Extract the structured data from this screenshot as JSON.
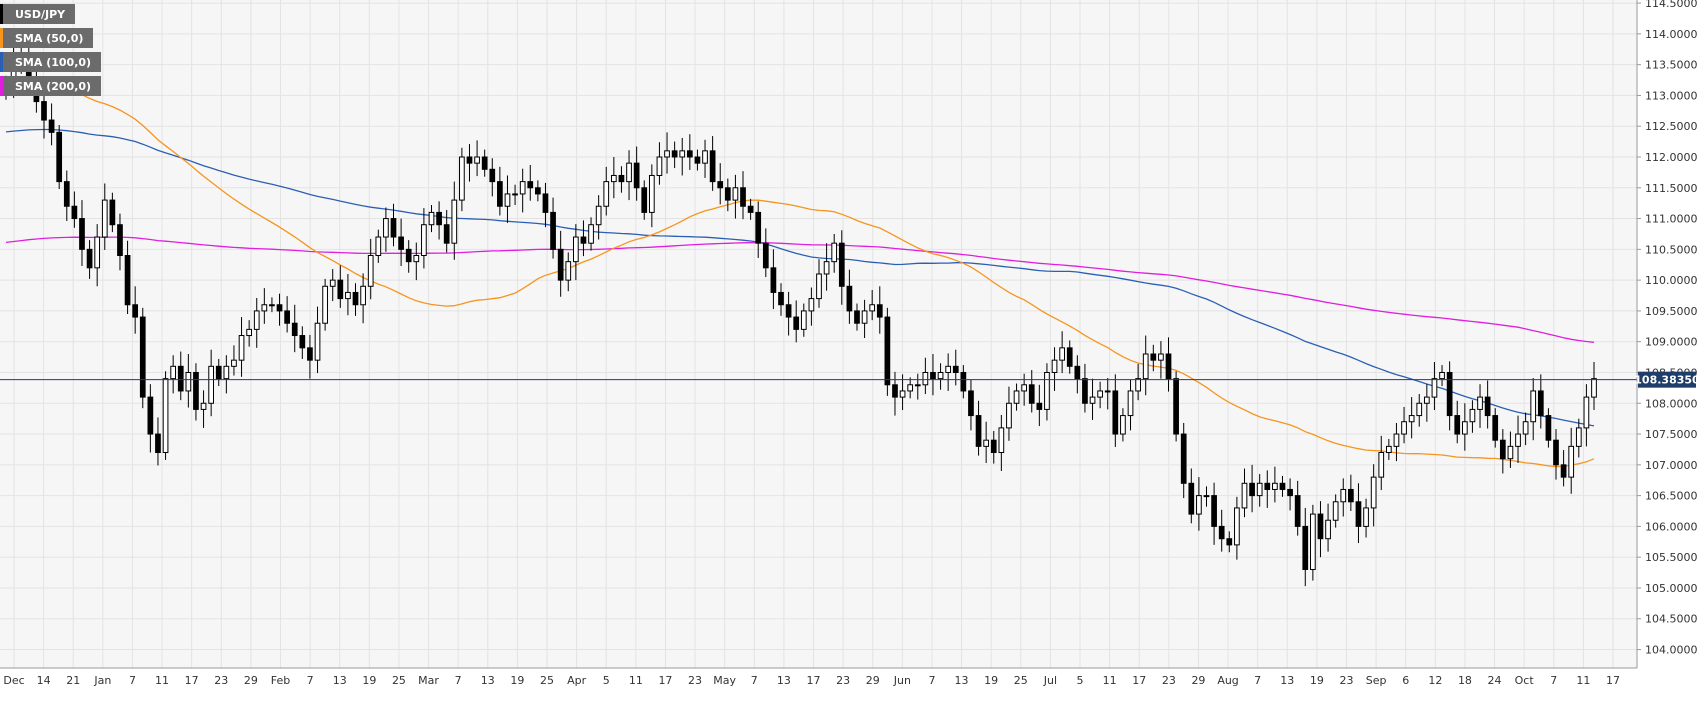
{
  "chart_data": {
    "type": "candlestick",
    "symbol": "USD/JPY",
    "last_price": "108.38350",
    "legend": [
      {
        "label": "USD/JPY",
        "color": "#000000"
      },
      {
        "label": "SMA (50,0)",
        "color": "#f7941d"
      },
      {
        "label": "SMA (100,0)",
        "color": "#2b5fb4"
      },
      {
        "label": "SMA (200,0)",
        "color": "#e01ee0"
      }
    ],
    "ylim": [
      103.7,
      114.55
    ],
    "y_ticks": [
      "114.5000",
      "114.0000",
      "113.5000",
      "113.0000",
      "112.5000",
      "112.0000",
      "111.5000",
      "111.0000",
      "110.5000",
      "110.0000",
      "109.5000",
      "109.0000",
      "108.5000",
      "108.0000",
      "107.5000",
      "107.0000",
      "106.5000",
      "106.0000",
      "105.5000",
      "105.0000",
      "104.5000",
      "104.0000"
    ],
    "x_ticks": [
      "Dec",
      "14",
      "21",
      "Jan",
      "7",
      "11",
      "17",
      "23",
      "29",
      "Feb",
      "7",
      "13",
      "19",
      "25",
      "Mar",
      "7",
      "13",
      "19",
      "25",
      "Apr",
      "5",
      "11",
      "17",
      "23",
      "May",
      "7",
      "13",
      "17",
      "23",
      "29",
      "Jun",
      "7",
      "13",
      "19",
      "25",
      "Jul",
      "5",
      "11",
      "17",
      "23",
      "29",
      "Aug",
      "7",
      "13",
      "19",
      "23",
      "Sep",
      "6",
      "12",
      "18",
      "24",
      "Oct",
      "7",
      "11",
      "17"
    ],
    "grid": true,
    "colors": {
      "up": "#ffffff",
      "down": "#000000",
      "sma50": "#f7941d",
      "sma100": "#2b5fb4",
      "sma200": "#e01ee0",
      "price_line": "#1f3d6b"
    },
    "closes": [
      113.2,
      113.6,
      113.5,
      113.3,
      112.9,
      112.6,
      112.4,
      111.6,
      111.2,
      111.0,
      110.5,
      110.2,
      110.7,
      111.3,
      110.9,
      110.4,
      109.6,
      109.4,
      108.1,
      107.5,
      107.2,
      108.4,
      108.6,
      108.2,
      108.5,
      107.9,
      108.0,
      108.6,
      108.4,
      108.6,
      108.7,
      109.1,
      109.2,
      109.5,
      109.6,
      109.6,
      109.5,
      109.3,
      109.1,
      108.9,
      108.7,
      109.3,
      109.9,
      110.0,
      109.7,
      109.8,
      109.6,
      109.9,
      110.4,
      110.7,
      111.0,
      110.7,
      110.5,
      110.3,
      110.4,
      110.9,
      111.1,
      110.9,
      110.6,
      111.3,
      112.0,
      111.9,
      112.0,
      111.8,
      111.6,
      111.2,
      111.4,
      111.4,
      111.6,
      111.5,
      111.4,
      111.1,
      110.5,
      110.0,
      110.3,
      110.7,
      110.6,
      110.9,
      111.2,
      111.6,
      111.7,
      111.6,
      111.9,
      111.5,
      111.1,
      111.7,
      112.0,
      112.1,
      112.0,
      112.1,
      112.0,
      111.9,
      112.1,
      111.6,
      111.5,
      111.3,
      111.5,
      111.2,
      111.1,
      110.6,
      110.2,
      109.8,
      109.6,
      109.4,
      109.2,
      109.5,
      109.7,
      110.1,
      110.3,
      110.6,
      109.9,
      109.5,
      109.3,
      109.5,
      109.6,
      109.4,
      108.3,
      108.1,
      108.2,
      108.3,
      108.3,
      108.5,
      108.4,
      108.5,
      108.6,
      108.5,
      108.2,
      107.8,
      107.3,
      107.4,
      107.2,
      107.6,
      108.0,
      108.2,
      108.3,
      108.0,
      107.9,
      108.5,
      108.7,
      108.9,
      108.6,
      108.4,
      108.0,
      108.1,
      108.2,
      108.2,
      107.5,
      107.8,
      108.2,
      108.4,
      108.8,
      108.7,
      108.8,
      108.4,
      107.5,
      106.7,
      106.2,
      106.5,
      106.5,
      106.0,
      105.8,
      105.7,
      106.3,
      106.7,
      106.5,
      106.7,
      106.6,
      106.7,
      106.6,
      106.5,
      106.0,
      105.3,
      106.2,
      105.8,
      106.1,
      106.4,
      106.6,
      106.4,
      106.0,
      106.3,
      106.8,
      107.2,
      107.3,
      107.5,
      107.7,
      107.8,
      108.0,
      108.1,
      108.4,
      108.5,
      107.8,
      107.5,
      107.7,
      107.9,
      108.1,
      107.8,
      107.4,
      107.1,
      107.3,
      107.5,
      107.7,
      108.2,
      107.8,
      107.4,
      107.0,
      106.8,
      107.3,
      107.6,
      108.1,
      108.4
    ]
  }
}
